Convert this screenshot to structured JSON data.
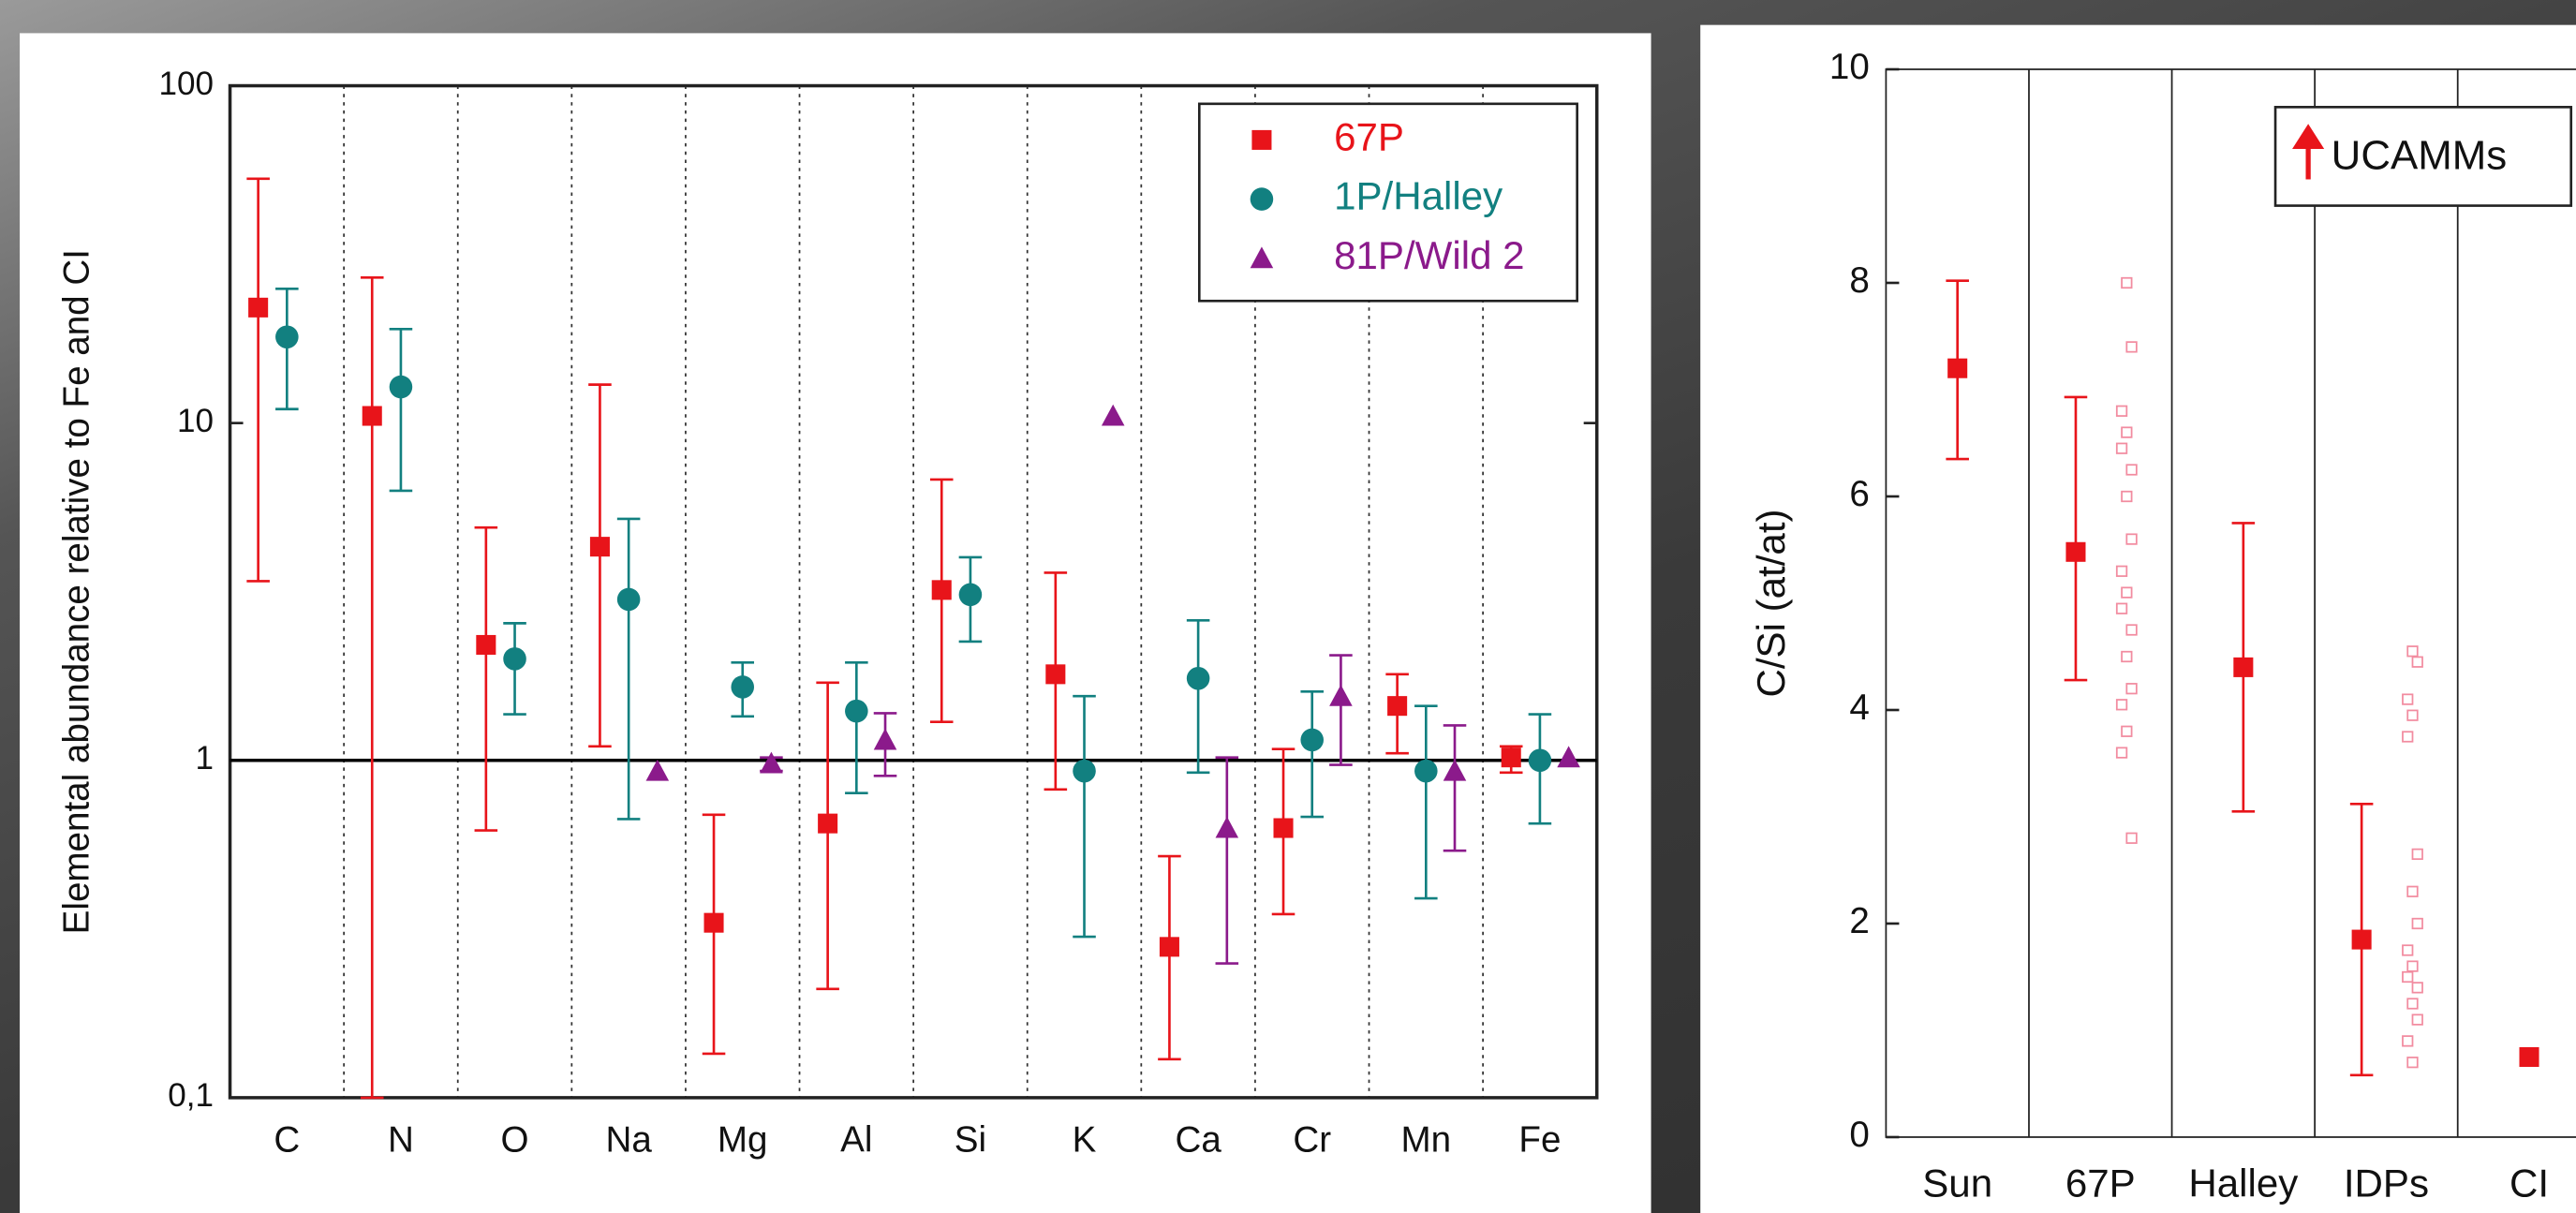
{
  "chart_data": [
    {
      "type": "errorbar",
      "y_scale": "log",
      "ylabel": "Elemental abundance relative to Fe and CI",
      "categories": [
        "C",
        "N",
        "O",
        "Na",
        "Mg",
        "Al",
        "Si",
        "K",
        "Ca",
        "Cr",
        "Mn",
        "Fe"
      ],
      "ylim": [
        0.1,
        100
      ],
      "yticks": [
        {
          "value": 0.1,
          "label": "0,1"
        },
        1,
        10,
        100
      ],
      "hline": 1,
      "legend": "top-right",
      "series": [
        {
          "name": "67P",
          "color": "#e8141a",
          "marker": "square",
          "values": [
            22,
            10.5,
            2.2,
            4.3,
            0.33,
            0.65,
            3.2,
            1.8,
            0.28,
            0.63,
            1.45,
            1.02
          ],
          "low": [
            3.4,
            0.1,
            0.62,
            1.1,
            0.135,
            0.21,
            1.3,
            0.82,
            0.13,
            0.35,
            1.05,
            0.92
          ],
          "high": [
            53,
            27,
            4.9,
            13,
            0.69,
            1.7,
            6.8,
            3.6,
            0.52,
            1.08,
            1.8,
            1.1
          ]
        },
        {
          "name": "1P/Halley",
          "color": "#128080",
          "marker": "circle",
          "values": [
            18,
            12.8,
            2,
            3,
            1.65,
            1.4,
            3.1,
            0.93,
            1.75,
            1.15,
            0.93,
            1.0
          ],
          "low": [
            11,
            6.3,
            1.37,
            0.67,
            1.35,
            0.8,
            2.25,
            0.3,
            0.92,
            0.68,
            0.39,
            0.65
          ],
          "high": [
            25,
            19,
            2.55,
            5.2,
            1.95,
            1.95,
            4,
            1.55,
            2.6,
            1.6,
            1.45,
            1.37
          ]
        },
        {
          "name": "81P/Wild 2",
          "color": "#8b1a8b",
          "marker": "triangle",
          "values": [
            null,
            null,
            null,
            0.93,
            0.98,
            1.15,
            null,
            10.5,
            0.63,
            1.55,
            0.93,
            1.02
          ],
          "low": [
            null,
            null,
            null,
            null,
            0.93,
            0.9,
            null,
            null,
            0.25,
            0.97,
            0.54,
            null
          ],
          "high": [
            null,
            null,
            null,
            null,
            1.02,
            1.38,
            null,
            null,
            1.02,
            2.05,
            1.27,
            null
          ]
        }
      ]
    },
    {
      "type": "errorbar",
      "y_scale": "linear",
      "ylabel": "C/Si (at/at)",
      "categories": [
        "Sun",
        "67P",
        "Halley",
        "IDPs",
        "CI"
      ],
      "ylim": [
        0,
        10
      ],
      "yticks": [
        0,
        2,
        4,
        6,
        8,
        10
      ],
      "legend": {
        "label": "UCAMMs",
        "color": "#e8141a",
        "marker": "arrow"
      },
      "series": [
        {
          "color": "#e8141a",
          "marker": "square",
          "values": [
            7.2,
            5.48,
            4.4,
            1.85,
            0.75
          ],
          "low": [
            6.35,
            4.28,
            3.05,
            0.58,
            null
          ],
          "high": [
            8.02,
            6.93,
            5.75,
            3.12,
            null
          ]
        }
      ],
      "individual": {
        "color": "#f28ca0",
        "marker": "open-square",
        "values": [
          [],
          [
            8.0,
            7.4,
            6.8,
            6.6,
            6.45,
            6.25,
            6.0,
            5.6,
            5.3,
            5.1,
            4.95,
            4.75,
            4.5,
            4.2,
            4.05,
            3.8,
            3.6,
            2.8
          ],
          [],
          [
            4.55,
            4.45,
            4.1,
            3.95,
            3.75,
            2.65,
            2.3,
            2.0,
            1.75,
            1.6,
            1.5,
            1.4,
            1.25,
            1.1,
            0.9,
            0.7
          ],
          []
        ]
      }
    }
  ]
}
